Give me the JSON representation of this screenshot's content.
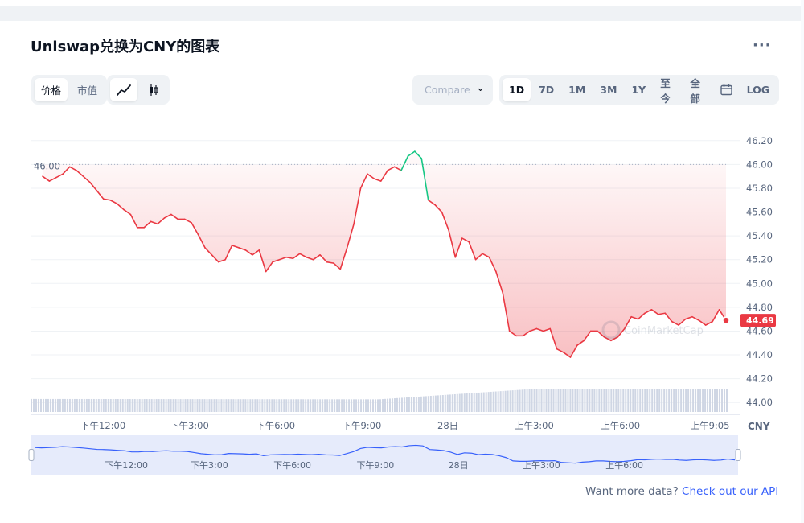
{
  "header": {
    "title": "Uniswap兑换为CNY的图表",
    "more_label": "···"
  },
  "toolbar": {
    "type_tabs": [
      "价格",
      "市值"
    ],
    "active_type": 0,
    "mode_icons": [
      "line-chart-icon",
      "candlestick-icon"
    ],
    "compare_placeholder": "Compare",
    "ranges": [
      "1D",
      "7D",
      "1M",
      "3M",
      "1Y",
      "至今",
      "全部"
    ],
    "active_range": 0,
    "calendar_icon": "calendar-icon",
    "log_label": "LOG"
  },
  "watermark": "CoinMarketCap",
  "footer": {
    "text": "Want more data?",
    "link": "Check out our API"
  },
  "colors": {
    "down": "#ea3943",
    "up": "#16c784",
    "volume": "#cfd6e4",
    "nav": "#3861fb"
  },
  "chart_data": {
    "type": "line",
    "currency": "CNY",
    "open_price": "46.00",
    "last_price": "44.69",
    "y_ticks": [
      "46.20",
      "46.00",
      "45.80",
      "45.60",
      "45.40",
      "45.20",
      "45.00",
      "44.80",
      "44.60",
      "44.40",
      "44.20",
      "44.00"
    ],
    "ylim": [
      43.9,
      46.3
    ],
    "x_ticks": [
      {
        "label": "下午12:00",
        "t": 0.085
      },
      {
        "label": "下午3:00",
        "t": 0.215
      },
      {
        "label": "下午6:00",
        "t": 0.345
      },
      {
        "label": "下午9:00",
        "t": 0.475
      },
      {
        "label": "28日",
        "t": 0.605
      },
      {
        "label": "上午3:00",
        "t": 0.735
      },
      {
        "label": "上午6:00",
        "t": 0.865
      },
      {
        "label": "上午9:05",
        "t": 1.0
      }
    ],
    "nav_x_ticks": [
      "下午12:00",
      "下午3:00",
      "下午6:00",
      "下午9:00",
      "28日",
      "上午3:00",
      "上午6:00"
    ],
    "series": [
      {
        "values": [
          45.9,
          45.86,
          45.89,
          45.92,
          45.98,
          45.95,
          45.9,
          45.85,
          45.78,
          45.71,
          45.7,
          45.67,
          45.62,
          45.58,
          45.47,
          45.47,
          45.52,
          45.5,
          45.55,
          45.58,
          45.54,
          45.54,
          45.51,
          45.41,
          45.3,
          45.24,
          45.18,
          45.2,
          45.32,
          45.3,
          45.28,
          45.24,
          45.28,
          45.1,
          45.18,
          45.2,
          45.22,
          45.21,
          45.25,
          45.22,
          45.2,
          45.24,
          45.18,
          45.17,
          45.12,
          45.3,
          45.5,
          45.8,
          45.92,
          45.88,
          45.86,
          45.95,
          45.98,
          45.95,
          46.07,
          46.11,
          46.05,
          45.7,
          45.66,
          45.6,
          45.45,
          45.22,
          45.38,
          45.35,
          45.2,
          45.25,
          45.22,
          45.1,
          44.92,
          44.6,
          44.56,
          44.56,
          44.6,
          44.62,
          44.6,
          44.62,
          44.45,
          44.42,
          44.38,
          44.48,
          44.52,
          44.6,
          44.6,
          44.55,
          44.52,
          44.55,
          44.62,
          44.72,
          44.7,
          44.75,
          44.78,
          44.74,
          44.75,
          44.68,
          44.65,
          44.7,
          44.72,
          44.69,
          44.65,
          44.68,
          44.78,
          44.69
        ]
      }
    ],
    "volume": {
      "start": 0.35,
      "mid": 0.34,
      "end": 0.62
    }
  }
}
